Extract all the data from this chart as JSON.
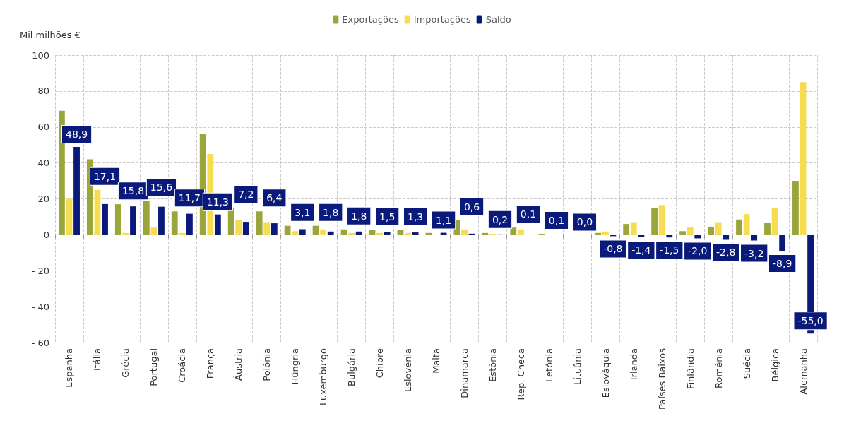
{
  "chart_data": {
    "type": "bar",
    "ylabel": "Mil milhões €",
    "categories": [
      "Espanha",
      "Itália",
      "Grécia",
      "Portugal",
      "Croácia",
      "França",
      "Áustria",
      "Polónia",
      "Húngria",
      "Luxemburgo",
      "Bulgária",
      "Chipre",
      "Eslovénia",
      "Malta",
      "Dinamarca",
      "Estónia",
      "Rep. Checa",
      "Letónia",
      "Lituânia",
      "Eslováquia",
      "Irlanda",
      "Países Baixos",
      "Finlândia",
      "Roménia",
      "Suécia",
      "Bélgica",
      "Alemanha"
    ],
    "series": [
      {
        "name": "Exportações",
        "color": "#9aa53a",
        "values": [
          69,
          42,
          17,
          19,
          13,
          56,
          15,
          13,
          5,
          5,
          3,
          2.5,
          2.5,
          1,
          8,
          1,
          4,
          0.5,
          null,
          1,
          6,
          15,
          2,
          4.5,
          8.5,
          6.5,
          30
        ]
      },
      {
        "name": "Importações",
        "color": "#f5dc50",
        "values": [
          20,
          25,
          1,
          4,
          1,
          45,
          8,
          7,
          2,
          3,
          1,
          1,
          1,
          0,
          3,
          0.5,
          3,
          null,
          null,
          1.8,
          7,
          16.5,
          4,
          7,
          11.5,
          15,
          85
        ]
      },
      {
        "name": "Saldo",
        "color": "#0a1a7a",
        "values": [
          48.9,
          17.1,
          15.8,
          15.6,
          11.7,
          11.3,
          7.2,
          6.4,
          3.1,
          1.8,
          1.8,
          1.5,
          1.3,
          1.1,
          0.6,
          0.2,
          0.1,
          0.1,
          0.0,
          -0.8,
          -1.4,
          -1.5,
          -2.0,
          -2.8,
          -3.2,
          -8.9,
          -55.0
        ],
        "value_labels": [
          "48,9",
          "17,1",
          "15,8",
          "15,6",
          "11,7",
          "11,3",
          "7,2",
          "6,4",
          "3,1",
          "1,8",
          "1,8",
          "1,5",
          "1,3",
          "1,1",
          "0,6",
          "0,2",
          "0,1",
          "0,1",
          "0,0",
          "-0,8",
          "-1,4",
          "-1,5",
          "-2,0",
          "-2,8",
          "-3,2",
          "-8,9",
          "-55,0"
        ]
      }
    ],
    "ylim": [
      -60,
      100
    ],
    "yticks": [
      {
        "value": -60,
        "label": "- 60"
      },
      {
        "value": -40,
        "label": "- 40"
      },
      {
        "value": -20,
        "label": "- 20"
      },
      0,
      20,
      40,
      60,
      80,
      100
    ],
    "grid": true,
    "legend": "top"
  }
}
